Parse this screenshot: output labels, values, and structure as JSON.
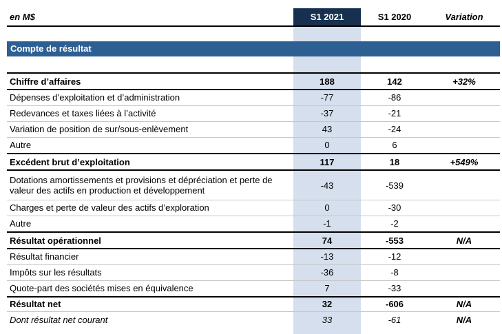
{
  "header": {
    "unit": "en M$",
    "col_2021": "S1 2021",
    "col_2020": "S1 2020",
    "col_var": "Variation"
  },
  "section": {
    "title": "Compte de résultat"
  },
  "rows": [
    {
      "label": "Chiffre d’affaires",
      "s1_2021": "188",
      "s1_2020": "142",
      "variation": "+32%"
    },
    {
      "label": "Dépenses d’exploitation et d’administration",
      "s1_2021": "-77",
      "s1_2020": "-86",
      "variation": ""
    },
    {
      "label": "Redevances et taxes liées à l’activité",
      "s1_2021": "-37",
      "s1_2020": "-21",
      "variation": ""
    },
    {
      "label": "Variation de position de sur/sous-enlèvement",
      "s1_2021": "43",
      "s1_2020": "-24",
      "variation": ""
    },
    {
      "label": "Autre",
      "s1_2021": "0",
      "s1_2020": "6",
      "variation": ""
    },
    {
      "label": "Excédent brut d’exploitation",
      "s1_2021": "117",
      "s1_2020": "18",
      "variation": "+549%"
    },
    {
      "label": "Dotations amortissements et provisions et dépréciation et perte de valeur des actifs en production et développement",
      "s1_2021": "-43",
      "s1_2020": "-539",
      "variation": ""
    },
    {
      "label": "Charges et perte de valeur des actifs d’exploration",
      "s1_2021": "0",
      "s1_2020": "-30",
      "variation": ""
    },
    {
      "label": "Autre",
      "s1_2021": "-1",
      "s1_2020": "-2",
      "variation": ""
    },
    {
      "label": "Résultat opérationnel",
      "s1_2021": "74",
      "s1_2020": "-553",
      "variation": "N/A"
    },
    {
      "label": "Résultat financier",
      "s1_2021": "-13",
      "s1_2020": "-12",
      "variation": ""
    },
    {
      "label": "Impôts sur les résultats",
      "s1_2021": "-36",
      "s1_2020": "-8",
      "variation": ""
    },
    {
      "label": "Quote-part des sociétés mises en équivalence",
      "s1_2021": "7",
      "s1_2020": "-33",
      "variation": ""
    },
    {
      "label": "Résultat net",
      "s1_2021": "32",
      "s1_2020": "-606",
      "variation": "N/A"
    },
    {
      "label": "Dont résultat net courant",
      "s1_2021": "33",
      "s1_2020": "-61",
      "variation": "N/A"
    }
  ]
}
